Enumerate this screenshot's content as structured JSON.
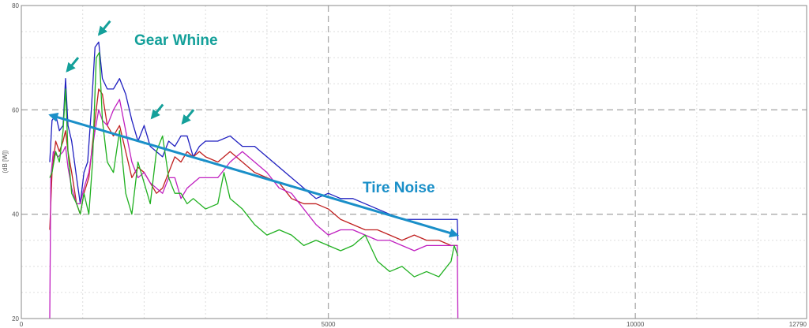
{
  "chart_data": {
    "type": "line",
    "title": "",
    "xlabel": "",
    "ylabel": "(dB [W])",
    "xlim": [
      0,
      12790
    ],
    "ylim": [
      20,
      80
    ],
    "x_ticks": [
      "0",
      "5000",
      "10000",
      "12790"
    ],
    "y_ticks": [
      "20",
      "40",
      "60",
      "80"
    ],
    "grid": true,
    "series": [
      {
        "color": "#2020c0",
        "points": [
          [
            463,
            50
          ],
          [
            500,
            58
          ],
          [
            560,
            59
          ],
          [
            620,
            56
          ],
          [
            680,
            57
          ],
          [
            720,
            66
          ],
          [
            760,
            57
          ],
          [
            820,
            54
          ],
          [
            900,
            47
          ],
          [
            960,
            42
          ],
          [
            1020,
            48
          ],
          [
            1080,
            50
          ],
          [
            1140,
            60
          ],
          [
            1200,
            72
          ],
          [
            1260,
            73
          ],
          [
            1320,
            66
          ],
          [
            1400,
            64
          ],
          [
            1500,
            64
          ],
          [
            1600,
            66
          ],
          [
            1700,
            63
          ],
          [
            1800,
            58
          ],
          [
            1900,
            54
          ],
          [
            2000,
            57
          ],
          [
            2100,
            53
          ],
          [
            2200,
            52
          ],
          [
            2300,
            51
          ],
          [
            2400,
            54
          ],
          [
            2500,
            53
          ],
          [
            2600,
            55
          ],
          [
            2700,
            55
          ],
          [
            2800,
            51
          ],
          [
            2900,
            53
          ],
          [
            3000,
            54
          ],
          [
            3200,
            54
          ],
          [
            3400,
            55
          ],
          [
            3600,
            53
          ],
          [
            3800,
            53
          ],
          [
            4000,
            51
          ],
          [
            4200,
            49
          ],
          [
            4400,
            47
          ],
          [
            4600,
            45
          ],
          [
            4800,
            43
          ],
          [
            5000,
            44
          ],
          [
            5200,
            43
          ],
          [
            5400,
            43
          ],
          [
            5600,
            42
          ],
          [
            5800,
            41
          ],
          [
            6000,
            40
          ],
          [
            6200,
            39
          ],
          [
            6400,
            39
          ],
          [
            6600,
            39
          ],
          [
            6800,
            39
          ],
          [
            7000,
            39
          ],
          [
            7100,
            39
          ],
          [
            7110,
            35
          ]
        ]
      },
      {
        "color": "#c02020",
        "points": [
          [
            463,
            37
          ],
          [
            500,
            48
          ],
          [
            560,
            54
          ],
          [
            620,
            52
          ],
          [
            680,
            54
          ],
          [
            720,
            56
          ],
          [
            760,
            52
          ],
          [
            820,
            48
          ],
          [
            900,
            42
          ],
          [
            960,
            40
          ],
          [
            1020,
            44
          ],
          [
            1100,
            47
          ],
          [
            1200,
            58
          ],
          [
            1260,
            64
          ],
          [
            1320,
            63
          ],
          [
            1400,
            57
          ],
          [
            1500,
            55
          ],
          [
            1600,
            57
          ],
          [
            1700,
            52
          ],
          [
            1800,
            47
          ],
          [
            1900,
            49
          ],
          [
            2000,
            48
          ],
          [
            2100,
            46
          ],
          [
            2200,
            44
          ],
          [
            2300,
            45
          ],
          [
            2400,
            48
          ],
          [
            2500,
            51
          ],
          [
            2600,
            50
          ],
          [
            2700,
            52
          ],
          [
            2800,
            51
          ],
          [
            2900,
            52
          ],
          [
            3000,
            51
          ],
          [
            3200,
            50
          ],
          [
            3400,
            52
          ],
          [
            3600,
            50
          ],
          [
            3800,
            48
          ],
          [
            4000,
            47
          ],
          [
            4200,
            46
          ],
          [
            4400,
            43
          ],
          [
            4600,
            42
          ],
          [
            4800,
            42
          ],
          [
            5000,
            41
          ],
          [
            5200,
            39
          ],
          [
            5400,
            38
          ],
          [
            5600,
            37
          ],
          [
            5800,
            37
          ],
          [
            6000,
            36
          ],
          [
            6200,
            35
          ],
          [
            6400,
            36
          ],
          [
            6600,
            35
          ],
          [
            6800,
            35
          ],
          [
            7000,
            34
          ],
          [
            7110,
            34
          ]
        ]
      },
      {
        "color": "#c020c0",
        "points": [
          [
            463,
            20
          ],
          [
            480,
            47
          ],
          [
            520,
            52
          ],
          [
            600,
            51
          ],
          [
            680,
            52
          ],
          [
            720,
            53
          ],
          [
            760,
            49
          ],
          [
            820,
            45
          ],
          [
            900,
            42
          ],
          [
            960,
            42
          ],
          [
            1020,
            45
          ],
          [
            1100,
            48
          ],
          [
            1200,
            56
          ],
          [
            1260,
            60
          ],
          [
            1320,
            58
          ],
          [
            1400,
            57
          ],
          [
            1500,
            60
          ],
          [
            1600,
            62
          ],
          [
            1700,
            56
          ],
          [
            1800,
            50
          ],
          [
            1900,
            47
          ],
          [
            2000,
            48
          ],
          [
            2100,
            46
          ],
          [
            2200,
            45
          ],
          [
            2300,
            44
          ],
          [
            2400,
            47
          ],
          [
            2500,
            47
          ],
          [
            2600,
            43
          ],
          [
            2700,
            45
          ],
          [
            2800,
            46
          ],
          [
            2900,
            47
          ],
          [
            3000,
            47
          ],
          [
            3200,
            47
          ],
          [
            3400,
            50
          ],
          [
            3600,
            52
          ],
          [
            3800,
            50
          ],
          [
            4000,
            48
          ],
          [
            4200,
            45
          ],
          [
            4400,
            44
          ],
          [
            4600,
            41
          ],
          [
            4800,
            38
          ],
          [
            5000,
            36
          ],
          [
            5200,
            37
          ],
          [
            5400,
            37
          ],
          [
            5600,
            36
          ],
          [
            5800,
            35
          ],
          [
            6000,
            35
          ],
          [
            6200,
            34
          ],
          [
            6400,
            33
          ],
          [
            6600,
            34
          ],
          [
            6800,
            34
          ],
          [
            7000,
            34
          ],
          [
            7100,
            34
          ],
          [
            7110,
            20
          ]
        ]
      },
      {
        "color": "#20b020",
        "points": [
          [
            463,
            47
          ],
          [
            500,
            48
          ],
          [
            560,
            52
          ],
          [
            620,
            50
          ],
          [
            680,
            56
          ],
          [
            720,
            64
          ],
          [
            760,
            52
          ],
          [
            820,
            44
          ],
          [
            900,
            42
          ],
          [
            960,
            40
          ],
          [
            1020,
            44
          ],
          [
            1100,
            40
          ],
          [
            1160,
            50
          ],
          [
            1220,
            70
          ],
          [
            1270,
            71
          ],
          [
            1320,
            58
          ],
          [
            1400,
            50
          ],
          [
            1500,
            48
          ],
          [
            1600,
            56
          ],
          [
            1700,
            44
          ],
          [
            1800,
            40
          ],
          [
            1900,
            50
          ],
          [
            2000,
            46
          ],
          [
            2100,
            42
          ],
          [
            2200,
            52
          ],
          [
            2300,
            55
          ],
          [
            2400,
            47
          ],
          [
            2500,
            44
          ],
          [
            2600,
            44
          ],
          [
            2700,
            42
          ],
          [
            2800,
            43
          ],
          [
            2900,
            42
          ],
          [
            3000,
            41
          ],
          [
            3200,
            42
          ],
          [
            3300,
            48
          ],
          [
            3400,
            43
          ],
          [
            3600,
            41
          ],
          [
            3800,
            38
          ],
          [
            4000,
            36
          ],
          [
            4200,
            37
          ],
          [
            4400,
            36
          ],
          [
            4600,
            34
          ],
          [
            4800,
            35
          ],
          [
            5000,
            34
          ],
          [
            5200,
            33
          ],
          [
            5400,
            34
          ],
          [
            5600,
            36
          ],
          [
            5800,
            31
          ],
          [
            6000,
            29
          ],
          [
            6200,
            30
          ],
          [
            6400,
            28
          ],
          [
            6600,
            29
          ],
          [
            6800,
            28
          ],
          [
            7000,
            31
          ],
          [
            7050,
            34
          ],
          [
            7110,
            32
          ]
        ]
      }
    ],
    "annotations": {
      "gear_whine": {
        "text": "Gear Whine",
        "color": "#14a09a",
        "arrow_targets": [
          [
            720,
            67
          ],
          [
            1240,
            74
          ],
          [
            2100,
            58
          ],
          [
            2600,
            57
          ]
        ]
      },
      "tire_noise": {
        "text": "Tire Noise",
        "color": "#1a8fc8",
        "arrow": [
          [
            470,
            59
          ],
          [
            7100,
            36
          ]
        ]
      }
    }
  }
}
